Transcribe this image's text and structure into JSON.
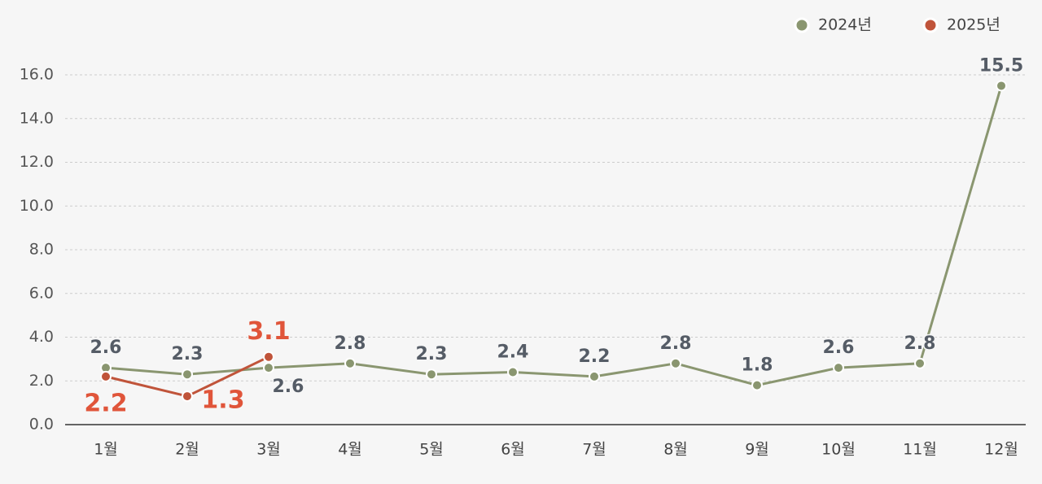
{
  "chart_data": {
    "type": "line",
    "categories": [
      "1월",
      "2월",
      "3월",
      "4월",
      "5월",
      "6월",
      "7월",
      "8월",
      "9월",
      "10월",
      "11월",
      "12월"
    ],
    "series": [
      {
        "name": "2024년",
        "color": "#8a9670",
        "values": [
          2.6,
          2.3,
          2.6,
          2.8,
          2.3,
          2.4,
          2.2,
          2.8,
          1.8,
          2.6,
          2.8,
          15.5
        ]
      },
      {
        "name": "2025년",
        "color": "#c0543a",
        "values": [
          2.2,
          1.3,
          3.1,
          null,
          null,
          null,
          null,
          null,
          null,
          null,
          null,
          null
        ]
      }
    ],
    "ylim": [
      0,
      16
    ],
    "yticks": [
      {
        "value": 0,
        "label": "0.0"
      },
      {
        "value": 2,
        "label": "2.0"
      },
      {
        "value": 4,
        "label": "4.0"
      },
      {
        "value": 6,
        "label": "6.0"
      },
      {
        "value": 8,
        "label": "8.0"
      },
      {
        "value": 10,
        "label": "10.0"
      },
      {
        "value": 12,
        "label": "12.0"
      },
      {
        "value": 14,
        "label": "14.0"
      },
      {
        "value": 16,
        "label": "16.0"
      }
    ],
    "grid": true,
    "legend": "top-right"
  }
}
